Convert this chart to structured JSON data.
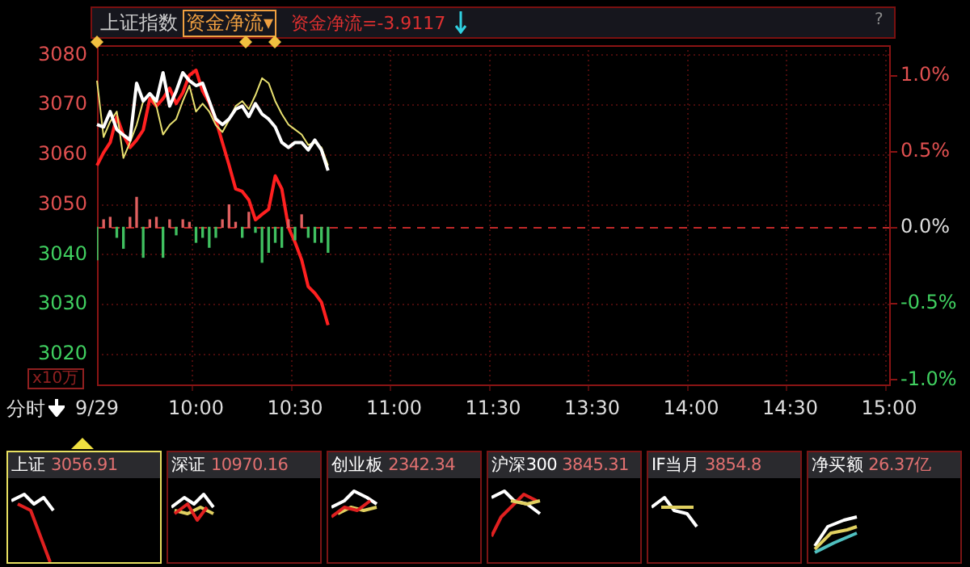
{
  "chart_data": {
    "type": "line",
    "title": "上证指数",
    "annotations": [
      "资金净流▾",
      "资金净流=-3.9117",
      "?",
      "x10万",
      "分时",
      "上证 3056.91",
      "深证 10970.16",
      "创业板 2342.34",
      "沪深300 3845.31",
      "IF当月 3854.8",
      "净买额 26.37亿"
    ],
    "categories": [
      "9/29",
      null,
      null,
      null,
      null,
      null,
      null,
      null,
      null,
      null,
      null,
      null,
      null,
      null,
      null,
      "10:00",
      null,
      null,
      null,
      null,
      null,
      null,
      null,
      null,
      null,
      null,
      null,
      null,
      null,
      null,
      "10:30",
      null,
      null,
      null,
      null,
      null,
      null,
      null,
      null,
      null,
      null,
      null,
      null,
      null,
      null,
      "11:00",
      null,
      null,
      null,
      null,
      null,
      null,
      null,
      null,
      null,
      null,
      null,
      null,
      null,
      null,
      "11:30",
      null,
      null,
      null,
      null,
      null,
      null,
      null,
      null,
      null,
      null,
      null,
      null,
      null,
      null,
      "13:30",
      null,
      null,
      null,
      null,
      null,
      null,
      null,
      null,
      null,
      null,
      null,
      null,
      null,
      null,
      "14:00",
      null,
      null,
      null,
      null,
      null,
      null,
      null,
      null,
      null,
      null,
      null,
      null,
      null,
      null,
      "14:30",
      null,
      null,
      null,
      null,
      null,
      null,
      null,
      null,
      null,
      null,
      null,
      null,
      null,
      null,
      "15:00"
    ],
    "ylim": [
      3014,
      3082
    ],
    "yticks": [
      3020,
      3030,
      3040,
      3050,
      3060,
      3070,
      3080
    ],
    "y2lim": [
      -1.03,
      1.2
    ],
    "y2ticks": [
      {
        "value": -1,
        "label": "-1.0%"
      },
      {
        "value": -0.5,
        "label": "-0.5%"
      },
      {
        "value": 0,
        "label": "0.0%"
      },
      {
        "value": 0.5,
        "label": "0.5%"
      },
      {
        "value": 1,
        "label": "1.0%"
      }
    ],
    "grid": true,
    "legend": false,
    "marker": "none",
    "ref_lines": [
      {
        "axis": "y2",
        "value": 0,
        "color": "#c02828",
        "line_style": "dashed"
      }
    ],
    "series": [
      {
        "type": "bar",
        "base": [
          3045.5,
          3045.5,
          3045.5,
          3045.5,
          3045.5,
          3045.5,
          3045.5,
          3045.5,
          3045.5,
          3045.5,
          3045.5,
          3045.5,
          3045.5,
          3045.5,
          3045.5,
          3045.5,
          3045.5,
          3045.5,
          3045.5,
          3045.5,
          3045.5,
          3045.5,
          3045.5,
          3045.5,
          3045.5,
          3045.5,
          3045.5,
          3045.5,
          3045.5,
          3045.5,
          3045.5,
          3045.5,
          3045.5,
          3045.5,
          3045.5,
          3045.5,
          null,
          null,
          null,
          null,
          null,
          null,
          null,
          null,
          null,
          null,
          null,
          null,
          null,
          null,
          null,
          null,
          null,
          null,
          null,
          null,
          null,
          null,
          null,
          null,
          null,
          null,
          null,
          null,
          null,
          null,
          null,
          null,
          null,
          null,
          null,
          null,
          null,
          null,
          null,
          null,
          null,
          null,
          null,
          null,
          null,
          null,
          null,
          null,
          null,
          null,
          null,
          null,
          null,
          null,
          null,
          null,
          null,
          null,
          null,
          null,
          null,
          null,
          null,
          null,
          null,
          null,
          null,
          null,
          null,
          null,
          null,
          null,
          null,
          null,
          null,
          null,
          null,
          null,
          null,
          null,
          null,
          null,
          null,
          null,
          null
        ],
        "values": [
          -6.5,
          1.5,
          2,
          -2,
          -4.2,
          2,
          6,
          -6,
          1.5,
          2,
          -6,
          1.5,
          -1.5,
          1.5,
          1,
          -3,
          -2,
          -4,
          -2,
          1.5,
          4.5,
          1,
          -2,
          3,
          -1,
          -7,
          -5,
          -3,
          -4,
          1.5,
          -2.5,
          2.5,
          -2,
          -3,
          -3,
          -5,
          null,
          null,
          null,
          null,
          null,
          null,
          null,
          null,
          null,
          null,
          null,
          null,
          null,
          null,
          null,
          null,
          null,
          null,
          null,
          null,
          null,
          null,
          null,
          null,
          null,
          null,
          null,
          null,
          null,
          null,
          null,
          null,
          null,
          null,
          null,
          null,
          null,
          null,
          null,
          null,
          null,
          null,
          null,
          null,
          null,
          null,
          null,
          null,
          null,
          null,
          null,
          null,
          null,
          null,
          null,
          null,
          null,
          null,
          null,
          null,
          null,
          null,
          null,
          null,
          null,
          null,
          null,
          null,
          null,
          null,
          null,
          null,
          null,
          null,
          null,
          null,
          null,
          null,
          null,
          null,
          null,
          null,
          null,
          null,
          null
        ],
        "colors": [
          "#40c060",
          "#e06060",
          "#e06060",
          "#40c060",
          "#40c060",
          "#e06060",
          "#e06060",
          "#40c060",
          "#e06060",
          "#e06060",
          "#40c060",
          "#e06060",
          "#40c060",
          "#e06060",
          "#e06060",
          "#40c060",
          "#40c060",
          "#40c060",
          "#40c060",
          "#e06060",
          "#e06060",
          "#e06060",
          "#40c060",
          "#e06060",
          "#40c060",
          "#40c060",
          "#40c060",
          "#40c060",
          "#40c060",
          "#e06060",
          "#40c060",
          "#e06060",
          "#40c060",
          "#40c060",
          "#40c060",
          "#40c060",
          null,
          null,
          null,
          null,
          null,
          null,
          null,
          null,
          null,
          null,
          null,
          null,
          null,
          null,
          null,
          null,
          null,
          null,
          null,
          null,
          null,
          null,
          null,
          null,
          null,
          null,
          null,
          null,
          null,
          null,
          null,
          null,
          null,
          null,
          null,
          null,
          null,
          null,
          null,
          null,
          null,
          null,
          null,
          null,
          null,
          null,
          null,
          null,
          null,
          null,
          null,
          null,
          null,
          null,
          null,
          null,
          null,
          null,
          null,
          null,
          null,
          null,
          null,
          null,
          null,
          null,
          null,
          null,
          null,
          null,
          null,
          null,
          null,
          null,
          null,
          null,
          null,
          null,
          null,
          null,
          null,
          null,
          null,
          null,
          null
        ]
      },
      {
        "color": "#ffffff",
        "values": [
          3066.1,
          3065.6,
          3068.7,
          3065.1,
          3064,
          3063,
          3074.4,
          3070.8,
          3072.3,
          3070.8,
          3076.5,
          3069.8,
          3072.8,
          3076.5,
          3074.9,
          3073.9,
          3074.4,
          3070.8,
          3067.2,
          3066.1,
          3067.2,
          3069.2,
          3069.8,
          3067.7,
          3070.3,
          3068.2,
          3067.2,
          3065.6,
          3062.5,
          3061.5,
          3062.5,
          3062.5,
          3061,
          3063,
          3061,
          3056.9,
          null,
          null,
          null,
          null,
          null,
          null,
          null,
          null,
          null,
          null,
          null,
          null,
          null,
          null,
          null,
          null,
          null,
          null,
          null,
          null,
          null,
          null,
          null,
          null,
          null,
          null,
          null,
          null,
          null,
          null,
          null,
          null,
          null,
          null,
          null,
          null,
          null,
          null,
          null,
          null,
          null,
          null,
          null,
          null,
          null,
          null,
          null,
          null,
          null,
          null,
          null,
          null,
          null,
          null,
          null,
          null,
          null,
          null,
          null,
          null,
          null,
          null,
          null,
          null,
          null,
          null,
          null,
          null,
          null,
          null,
          null,
          null,
          null,
          null,
          null,
          null,
          null,
          null,
          null,
          null,
          null,
          null,
          null,
          null,
          null
        ]
      },
      {
        "color": "#e8e070",
        "values": [
          3074.9,
          3063.6,
          3066.7,
          3068.7,
          3059.4,
          3062.5,
          3066,
          3070.8,
          3072.3,
          3069.8,
          3064.1,
          3066,
          3067.2,
          3070.8,
          3073.9,
          3068.7,
          3070.3,
          3068.7,
          3066,
          3064.6,
          3067,
          3069.8,
          3070.8,
          3069.2,
          3072,
          3075.4,
          3074.4,
          3070.8,
          3068.2,
          3066.1,
          3065.1,
          3064.1,
          3062,
          3062.5,
          3061.5,
          3057.9,
          null,
          null,
          null,
          null,
          null,
          null,
          null,
          null,
          null,
          null,
          null,
          null,
          null,
          null,
          null,
          null,
          null,
          null,
          null,
          null,
          null,
          null,
          null,
          null,
          null,
          null,
          null,
          null,
          null,
          null,
          null,
          null,
          null,
          null,
          null,
          null,
          null,
          null,
          null,
          null,
          null,
          null,
          null,
          null,
          null,
          null,
          null,
          null,
          null,
          null,
          null,
          null,
          null,
          null,
          null,
          null,
          null,
          null,
          null,
          null,
          null,
          null,
          null,
          null,
          null,
          null,
          null,
          null,
          null,
          null,
          null,
          null,
          null,
          null,
          null,
          null,
          null,
          null,
          null,
          null,
          null,
          null,
          null,
          null,
          null
        ]
      },
      {
        "color": "#ff2020",
        "values": [
          3057.9,
          3060.5,
          3062.5,
          3067.7,
          3064,
          3061.5,
          3063,
          3065,
          3071.3,
          3069.8,
          3071.3,
          3073.4,
          3070.3,
          3072.5,
          3076,
          3077,
          3072.8,
          3070.5,
          3067,
          3062.5,
          3058,
          3053.2,
          3052.7,
          3051,
          3047,
          3048.1,
          3049.1,
          3055.8,
          3053.2,
          3045.5,
          3042.5,
          3039,
          3033.6,
          3032.3,
          3030.5,
          3025.9,
          null,
          null,
          null,
          null,
          null,
          null,
          null,
          null,
          null,
          null,
          null,
          null,
          null,
          null,
          null,
          null,
          null,
          null,
          null,
          null,
          null,
          null,
          null,
          null,
          null,
          null,
          null,
          null,
          null,
          null,
          null,
          null,
          null,
          null,
          null,
          null,
          null,
          null,
          null,
          null,
          null,
          null,
          null,
          null,
          null,
          null,
          null,
          null,
          null,
          null,
          null,
          null,
          null,
          null,
          null,
          null,
          null,
          null,
          null,
          null,
          null,
          null,
          null,
          null,
          null,
          null,
          null,
          null,
          null,
          null,
          null,
          null,
          null,
          null,
          null,
          null,
          null,
          null,
          null,
          null,
          null,
          null,
          null,
          null,
          null
        ]
      }
    ]
  }
}
